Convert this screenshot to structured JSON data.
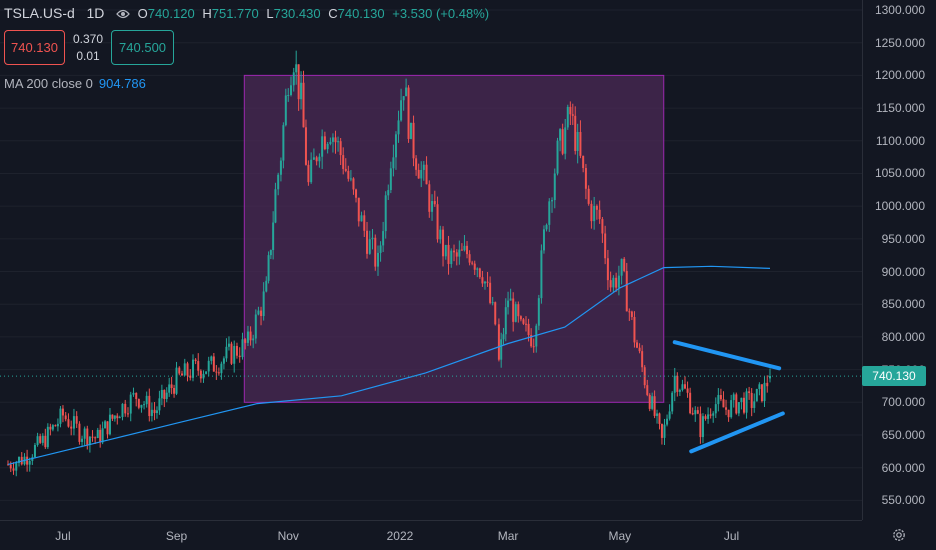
{
  "symbol": "TSLA.US-d",
  "interval": "1D",
  "ohlc": {
    "open_label": "O",
    "open": "740.120",
    "high_label": "H",
    "high": "751.770",
    "low_label": "L",
    "low": "730.430",
    "close_label": "C",
    "close": "740.130",
    "change": "+3.530 (+0.48%)"
  },
  "trade": {
    "sell_price": "740.130",
    "spread_top": "0.370",
    "spread_bottom": "0.01",
    "buy_price": "740.500"
  },
  "ma": {
    "label": "MA 200 close 0",
    "value": "904.786"
  },
  "current_price_tag": "740.130",
  "colors": {
    "up": "#26a69a",
    "down": "#ef5350",
    "ma": "#2196f3",
    "box_fill": "#4b2a55",
    "box_stroke": "#9c27b0",
    "trendline": "#2196f3"
  },
  "icons": {
    "visibility": "eye-icon",
    "settings": "gear-icon"
  },
  "chart_data": {
    "type": "candlestick",
    "y_ticks": [
      "1300.000",
      "1250.000",
      "1200.000",
      "1150.000",
      "1100.000",
      "1050.000",
      "1000.000",
      "950.000",
      "900.000",
      "850.000",
      "800.000",
      "750.000",
      "700.000",
      "650.000",
      "600.000",
      "550.000"
    ],
    "ylim": [
      520,
      1305
    ],
    "x_tick_labels": [
      "Jul",
      "Sep",
      "Nov",
      "2022",
      "Mar",
      "May",
      "Jul"
    ],
    "close_path": [
      {
        "date": "2021-06-01",
        "close": 605
      },
      {
        "date": "2021-06-10",
        "close": 615
      },
      {
        "date": "2021-06-20",
        "close": 640
      },
      {
        "date": "2021-07-01",
        "close": 680
      },
      {
        "date": "2021-07-10",
        "close": 655
      },
      {
        "date": "2021-07-20",
        "close": 645
      },
      {
        "date": "2021-08-01",
        "close": 690
      },
      {
        "date": "2021-08-10",
        "close": 710
      },
      {
        "date": "2021-08-20",
        "close": 685
      },
      {
        "date": "2021-09-01",
        "close": 735
      },
      {
        "date": "2021-09-10",
        "close": 750
      },
      {
        "date": "2021-09-20",
        "close": 755
      },
      {
        "date": "2021-10-01",
        "close": 775
      },
      {
        "date": "2021-10-10",
        "close": 790
      },
      {
        "date": "2021-10-20",
        "close": 870
      },
      {
        "date": "2021-10-25",
        "close": 1020
      },
      {
        "date": "2021-10-28",
        "close": 1080
      },
      {
        "date": "2021-11-01",
        "close": 1200
      },
      {
        "date": "2021-11-04",
        "close": 1230
      },
      {
        "date": "2021-11-08",
        "close": 1160
      },
      {
        "date": "2021-11-12",
        "close": 1030
      },
      {
        "date": "2021-11-18",
        "close": 1100
      },
      {
        "date": "2021-11-24",
        "close": 1120
      },
      {
        "date": "2021-12-01",
        "close": 1070
      },
      {
        "date": "2021-12-08",
        "close": 1000
      },
      {
        "date": "2021-12-14",
        "close": 950
      },
      {
        "date": "2021-12-20",
        "close": 910
      },
      {
        "date": "2021-12-27",
        "close": 1080
      },
      {
        "date": "2022-01-03",
        "close": 1190
      },
      {
        "date": "2022-01-07",
        "close": 1100
      },
      {
        "date": "2022-01-14",
        "close": 1040
      },
      {
        "date": "2022-01-20",
        "close": 980
      },
      {
        "date": "2022-01-26",
        "close": 920
      },
      {
        "date": "2022-02-01",
        "close": 920
      },
      {
        "date": "2022-02-08",
        "close": 930
      },
      {
        "date": "2022-02-15",
        "close": 900
      },
      {
        "date": "2022-02-22",
        "close": 820
      },
      {
        "date": "2022-02-24",
        "close": 760
      },
      {
        "date": "2022-03-01",
        "close": 860
      },
      {
        "date": "2022-03-08",
        "close": 810
      },
      {
        "date": "2022-03-15",
        "close": 800
      },
      {
        "date": "2022-03-22",
        "close": 990
      },
      {
        "date": "2022-03-28",
        "close": 1080
      },
      {
        "date": "2022-04-04",
        "close": 1140
      },
      {
        "date": "2022-04-08",
        "close": 1090
      },
      {
        "date": "2022-04-14",
        "close": 1000
      },
      {
        "date": "2022-04-20",
        "close": 980
      },
      {
        "date": "2022-04-26",
        "close": 880
      },
      {
        "date": "2022-05-02",
        "close": 900
      },
      {
        "date": "2022-05-09",
        "close": 800
      },
      {
        "date": "2022-05-16",
        "close": 720
      },
      {
        "date": "2022-05-24",
        "close": 640
      },
      {
        "date": "2022-05-31",
        "close": 740
      },
      {
        "date": "2022-06-07",
        "close": 710
      },
      {
        "date": "2022-06-14",
        "close": 660
      },
      {
        "date": "2022-06-21",
        "close": 700
      },
      {
        "date": "2022-06-28",
        "close": 690
      },
      {
        "date": "2022-07-05",
        "close": 700
      },
      {
        "date": "2022-07-12",
        "close": 700
      },
      {
        "date": "2022-07-19",
        "close": 720
      },
      {
        "date": "2022-07-22",
        "close": 740.13
      }
    ],
    "ma_series": [
      {
        "date": "2021-06-01",
        "value": 605
      },
      {
        "date": "2021-07-15",
        "value": 635
      },
      {
        "date": "2021-09-01",
        "value": 668
      },
      {
        "date": "2021-10-15",
        "value": 698
      },
      {
        "date": "2021-11-30",
        "value": 710
      },
      {
        "date": "2022-01-15",
        "value": 745
      },
      {
        "date": "2022-03-01",
        "value": 790
      },
      {
        "date": "2022-04-01",
        "value": 815
      },
      {
        "date": "2022-05-01",
        "value": 875
      },
      {
        "date": "2022-05-25",
        "value": 906
      },
      {
        "date": "2022-06-20",
        "value": 908
      },
      {
        "date": "2022-07-22",
        "value": 904.786
      }
    ],
    "rectangle": {
      "start": "2021-10-08",
      "end": "2022-05-25",
      "top": 1200,
      "bottom": 700
    },
    "trendlines": [
      {
        "start_date": "2022-05-31",
        "start_price": 792,
        "end_date": "2022-07-27",
        "end_price": 752
      },
      {
        "start_date": "2022-06-09",
        "start_price": 625,
        "end_date": "2022-07-29",
        "end_price": 683
      }
    ]
  }
}
